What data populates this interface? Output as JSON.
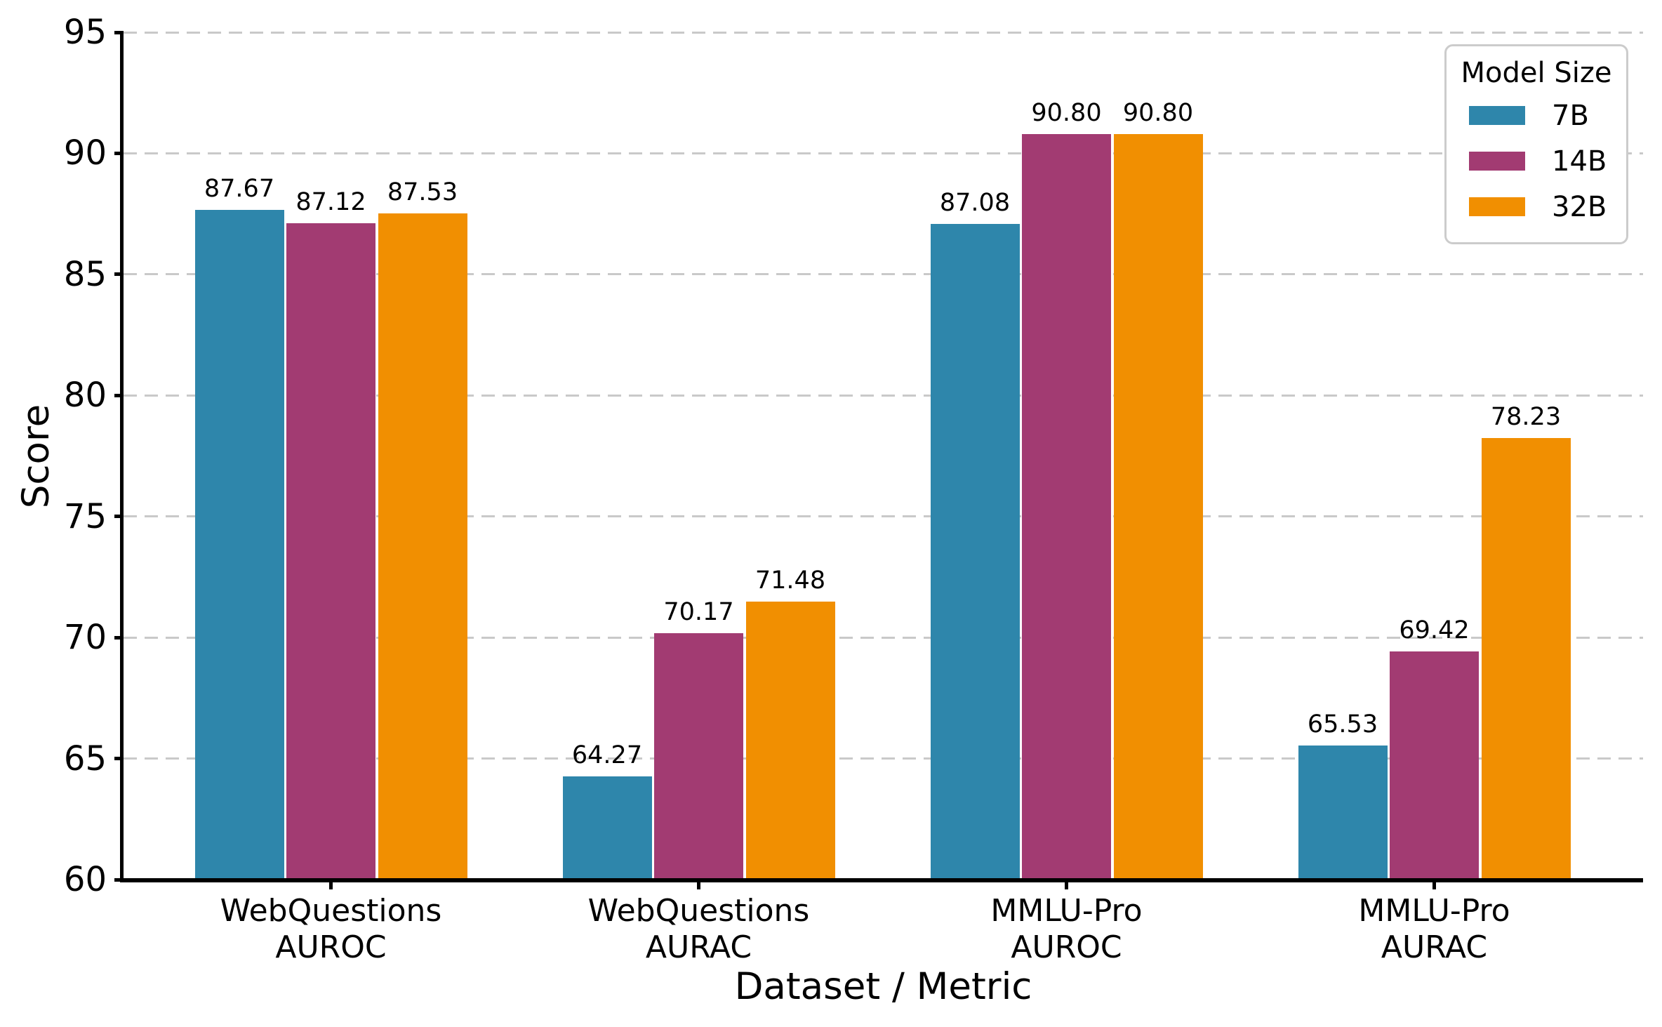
{
  "chart_data": {
    "type": "bar",
    "title": "",
    "xlabel": "Dataset / Metric",
    "ylabel": "Score",
    "categories": [
      [
        "WebQuestions",
        "AUROC"
      ],
      [
        "WebQuestions",
        "AURAC"
      ],
      [
        "MMLU-Pro",
        "AUROC"
      ],
      [
        "MMLU-Pro",
        "AURAC"
      ]
    ],
    "series": [
      {
        "name": "7B",
        "color": "#2E86AB",
        "values": [
          87.67,
          64.27,
          87.08,
          65.53
        ]
      },
      {
        "name": "14B",
        "color": "#A23B72",
        "values": [
          87.12,
          70.17,
          90.8,
          69.42
        ]
      },
      {
        "name": "32B",
        "color": "#F18F01",
        "values": [
          87.53,
          71.48,
          90.8,
          78.23
        ]
      }
    ],
    "value_labels": [
      [
        "87.67",
        "87.12",
        "87.53"
      ],
      [
        "64.27",
        "70.17",
        "71.48"
      ],
      [
        "87.08",
        "90.80",
        "90.80"
      ],
      [
        "65.53",
        "69.42",
        "78.23"
      ]
    ],
    "ylim": [
      60,
      95
    ],
    "yticks": [
      "60",
      "65",
      "70",
      "75",
      "80",
      "85",
      "90",
      "95"
    ],
    "grid": true,
    "legend": {
      "title": "Model Size",
      "position": "upper right"
    }
  },
  "colors": {
    "background": "#ffffff",
    "grid": "#c9c9c9",
    "axis": "#000000",
    "text": "#000000",
    "legend_border": "#cccccc"
  }
}
